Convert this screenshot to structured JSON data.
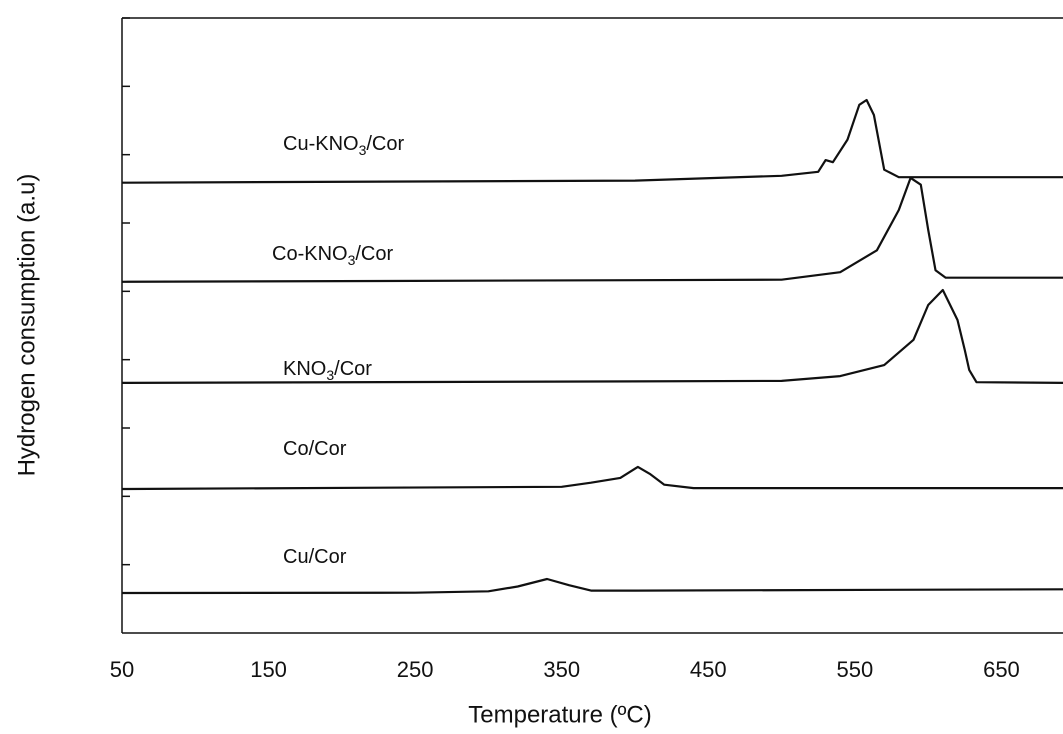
{
  "chart_data": {
    "type": "line",
    "xlabel": "Temperature (ºC)",
    "ylabel": "Hydrogen consumption (a.u)",
    "xlim": [
      50,
      692
    ],
    "xticks": [
      50,
      150,
      250,
      350,
      450,
      550,
      650
    ],
    "ylim": [
      0,
      9
    ],
    "yticks": [
      1,
      2,
      3,
      4,
      5,
      6,
      7,
      8,
      9
    ],
    "series": [
      {
        "name": "Cu-KNO3/Cor",
        "color": "#111111",
        "x": [
          50,
          400,
          500,
          525,
          530,
          535,
          545,
          553,
          558,
          563,
          570,
          580,
          692
        ],
        "values": [
          6.59,
          6.62,
          6.69,
          6.75,
          6.92,
          6.89,
          7.22,
          7.73,
          7.8,
          7.58,
          6.78,
          6.67,
          6.67
        ]
      },
      {
        "name": "Co-KNO3/Cor",
        "color": "#111111",
        "x": [
          50,
          500,
          540,
          565,
          580,
          588,
          595,
          600,
          605,
          612,
          692
        ],
        "values": [
          5.14,
          5.17,
          5.28,
          5.6,
          6.19,
          6.66,
          6.56,
          5.9,
          5.31,
          5.2,
          5.2
        ]
      },
      {
        "name": "KNO3/Cor",
        "color": "#111111",
        "x": [
          50,
          500,
          540,
          570,
          590,
          600,
          610,
          620,
          625,
          628,
          633,
          692
        ],
        "values": [
          3.66,
          3.69,
          3.76,
          3.92,
          4.29,
          4.8,
          5.02,
          4.58,
          4.14,
          3.85,
          3.67,
          3.66
        ]
      },
      {
        "name": "Co/Cor",
        "color": "#111111",
        "x": [
          50,
          350,
          370,
          390,
          402,
          410,
          420,
          440,
          692
        ],
        "values": [
          2.107,
          2.14,
          2.2,
          2.27,
          2.43,
          2.33,
          2.17,
          2.12,
          2.12
        ]
      },
      {
        "name": "Cu/Cor",
        "color": "#111111",
        "x": [
          50,
          250,
          300,
          320,
          340,
          355,
          370,
          400,
          692
        ],
        "values": [
          0.585,
          0.59,
          0.61,
          0.68,
          0.79,
          0.7,
          0.62,
          0.62,
          0.64
        ]
      }
    ]
  }
}
